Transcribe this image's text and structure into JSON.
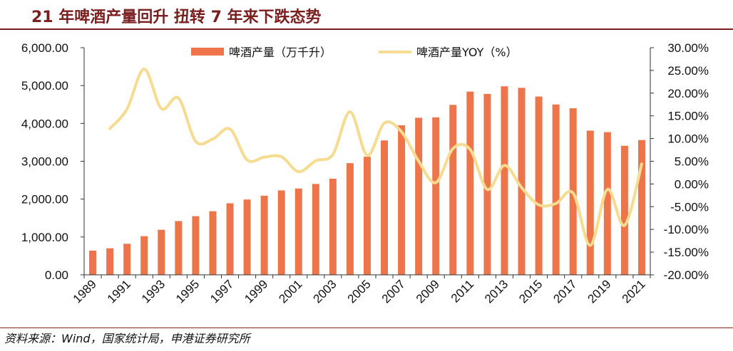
{
  "header": {
    "title": "21 年啤酒产量回升  扭转 7 年来下跌态势"
  },
  "footer": {
    "source": "资料来源：Wind，国家统计局，申港证券研究所"
  },
  "colors": {
    "bar": "#ED7549",
    "line": "#F5DC90",
    "title": "#7a1f1f"
  },
  "chart_data": {
    "type": "bar",
    "title": "21 年啤酒产量回升  扭转 7 年来下跌态势",
    "categories": [
      "1989",
      "1990",
      "1991",
      "1992",
      "1993",
      "1994",
      "1995",
      "1996",
      "1997",
      "1998",
      "1999",
      "2000",
      "2001",
      "2002",
      "2003",
      "2004",
      "2005",
      "2006",
      "2007",
      "2008",
      "2009",
      "2010",
      "2011",
      "2012",
      "2013",
      "2014",
      "2015",
      "2016",
      "2017",
      "2018",
      "2019",
      "2020",
      "2021"
    ],
    "x_tick_labels": [
      "1989",
      "1991",
      "1993",
      "1995",
      "1997",
      "1999",
      "2001",
      "2003",
      "2005",
      "2007",
      "2009",
      "2011",
      "2013",
      "2015",
      "2017",
      "2019",
      "2021"
    ],
    "series": [
      {
        "name": "啤酒产量（万千升）",
        "type": "bar",
        "axis": "left",
        "values": [
          640,
          700,
          820,
          1020,
          1190,
          1420,
          1550,
          1680,
          1890,
          1990,
          2090,
          2230,
          2280,
          2400,
          2540,
          2950,
          3120,
          3550,
          3950,
          4150,
          4160,
          4490,
          4840,
          4780,
          4980,
          4940,
          4710,
          4500,
          4400,
          3810,
          3770,
          3410,
          3560
        ]
      },
      {
        "name": "啤酒产量YOY（%）",
        "type": "line",
        "axis": "right",
        "values": [
          null,
          12.2,
          16.5,
          25.3,
          16.6,
          18.9,
          9.4,
          9.9,
          12.1,
          5.3,
          5.9,
          6.0,
          2.7,
          5.1,
          6.5,
          15.9,
          6.3,
          13.4,
          11.5,
          5.0,
          0.3,
          7.8,
          7.6,
          -1.2,
          4.1,
          -0.8,
          -4.6,
          -4.3,
          -2.0,
          -13.5,
          -1.2,
          -9.1,
          4.4
        ]
      }
    ],
    "y_left": {
      "min": 0,
      "max": 6000,
      "step": 1000,
      "tick_labels": [
        "0.00",
        "1,000.00",
        "2,000.00",
        "3,000.00",
        "4,000.00",
        "5,000.00",
        "6,000.00"
      ]
    },
    "y_right": {
      "min": -20,
      "max": 30,
      "step": 5,
      "tick_labels": [
        "-20.00%",
        "-15.00%",
        "-10.00%",
        "-5.00%",
        "0.00%",
        "5.00%",
        "10.00%",
        "15.00%",
        "20.00%",
        "25.00%",
        "30.00%"
      ]
    },
    "grid": false,
    "legend": "top-center"
  }
}
